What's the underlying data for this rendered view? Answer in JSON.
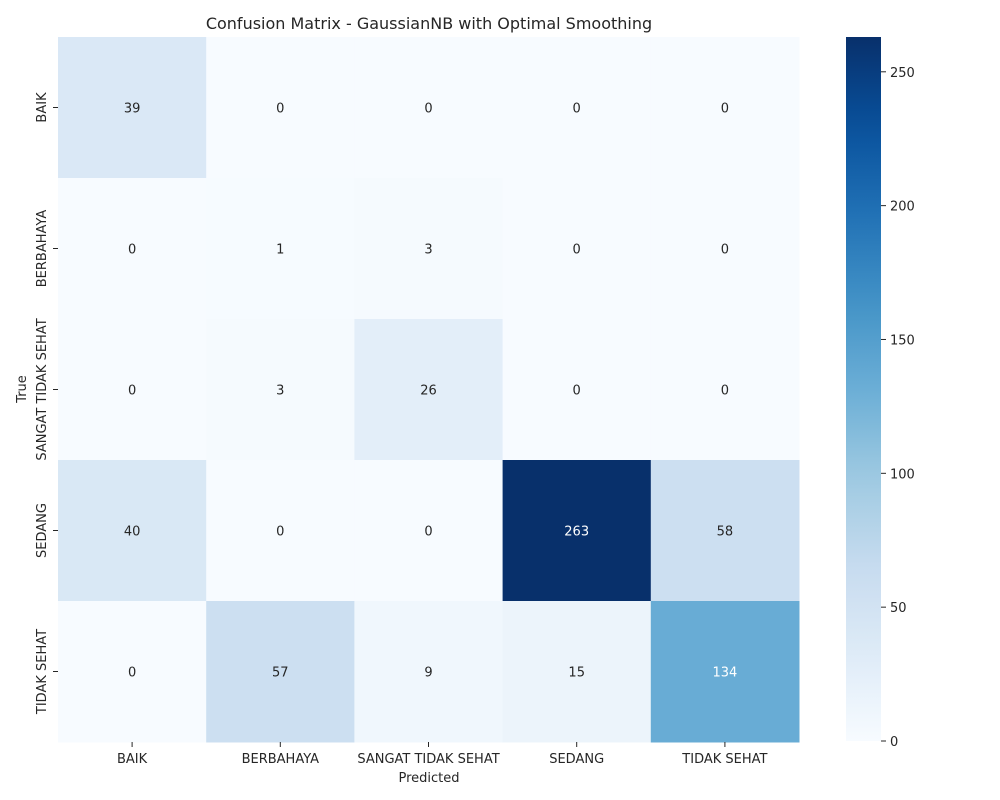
{
  "chart_data": {
    "type": "heatmap",
    "title": "Confusion Matrix - GaussianNB with Optimal Smoothing",
    "xlabel": "Predicted",
    "ylabel": "True",
    "x_categories": [
      "BAIK",
      "BERBAHAYA",
      "SANGAT TIDAK SEHAT",
      "SEDANG",
      "TIDAK SEHAT"
    ],
    "y_categories": [
      "BAIK",
      "BERBAHAYA",
      "SANGAT TIDAK SEHAT",
      "SEDANG",
      "TIDAK SEHAT"
    ],
    "values": [
      [
        39,
        0,
        0,
        0,
        0
      ],
      [
        0,
        1,
        3,
        0,
        0
      ],
      [
        0,
        3,
        26,
        0,
        0
      ],
      [
        40,
        0,
        0,
        263,
        58
      ],
      [
        0,
        57,
        9,
        15,
        134
      ]
    ],
    "colormap": "Blues",
    "vmin": 0,
    "vmax": 263,
    "colorbar_ticks": [
      0,
      50,
      100,
      150,
      200,
      250
    ]
  }
}
